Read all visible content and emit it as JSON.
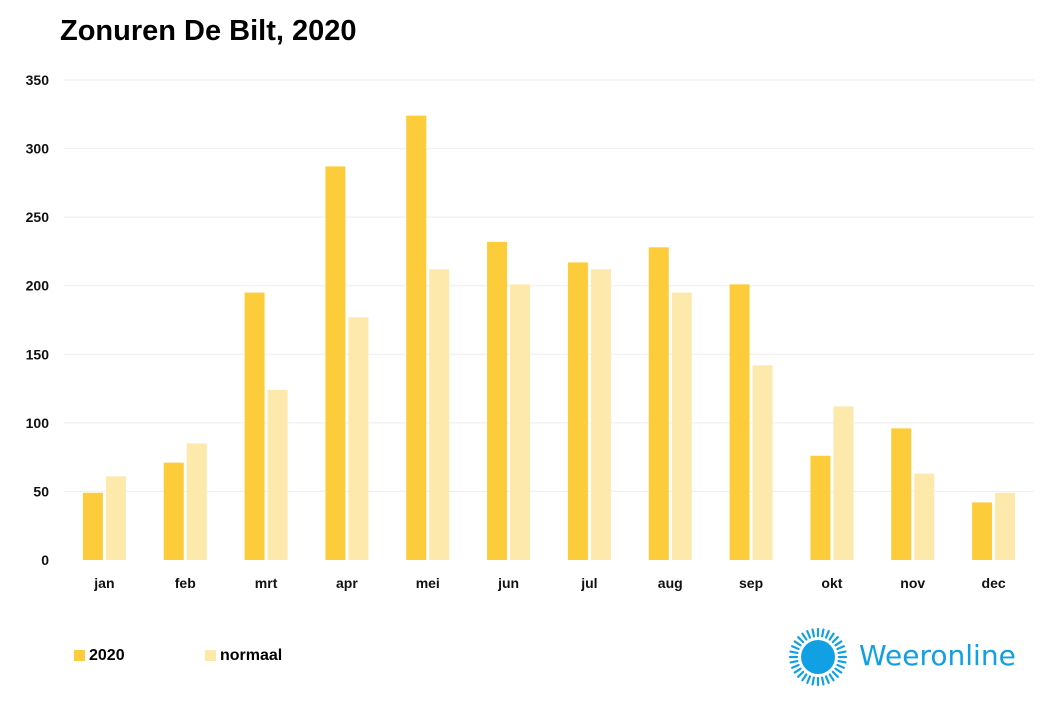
{
  "colors": {
    "series_2020": "#fccc3a",
    "series_normaal": "#fde9ab",
    "gridline": "#eeeeee",
    "logo_blue": "#12a0e4"
  },
  "logo": {
    "text": "Weeronline",
    "icon": "sun-icon"
  },
  "chart_data": {
    "type": "bar",
    "title": "Zonuren De Bilt, 2020",
    "xlabel": "",
    "ylabel": "",
    "categories": [
      "jan",
      "feb",
      "mrt",
      "apr",
      "mei",
      "jun",
      "jul",
      "aug",
      "sep",
      "okt",
      "nov",
      "dec"
    ],
    "series": [
      {
        "name": "2020",
        "color": "#fccc3a",
        "values": [
          49,
          71,
          195,
          287,
          324,
          232,
          217,
          228,
          201,
          76,
          96,
          42
        ]
      },
      {
        "name": "normaal",
        "color": "#fde9ab",
        "values": [
          61,
          85,
          124,
          177,
          212,
          201,
          212,
          195,
          142,
          112,
          63,
          49
        ]
      }
    ],
    "ylim": [
      0,
      350
    ],
    "yticks": [
      0,
      50,
      100,
      150,
      200,
      250,
      300,
      350
    ],
    "grid": true,
    "legend_position": "bottom-left"
  }
}
